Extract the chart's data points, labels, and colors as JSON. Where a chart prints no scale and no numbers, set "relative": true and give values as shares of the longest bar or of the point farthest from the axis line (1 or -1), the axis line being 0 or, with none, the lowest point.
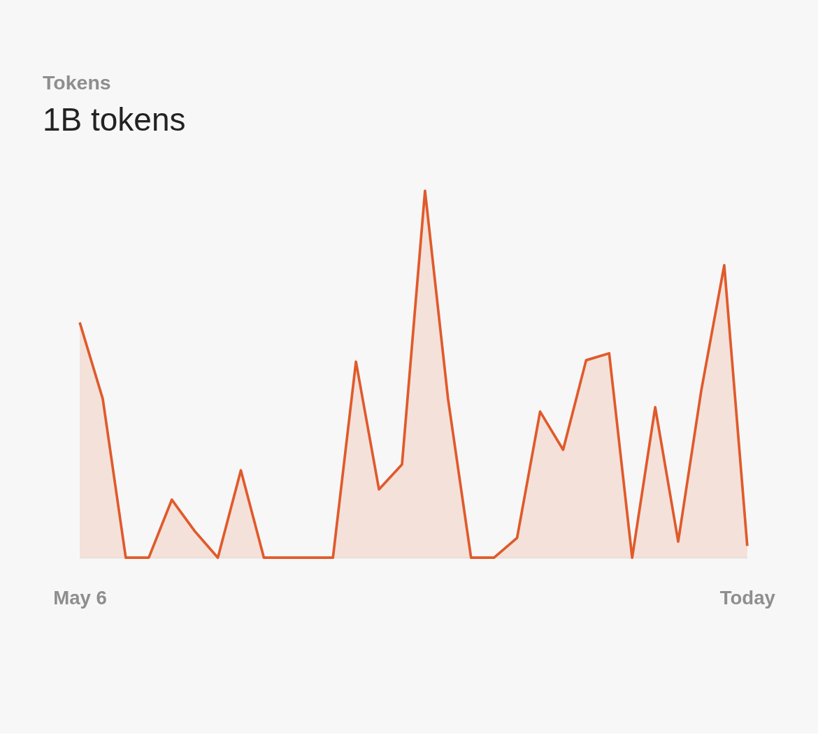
{
  "chart_data": {
    "type": "area",
    "title": "Tokens",
    "subtitle": "1B tokens",
    "relative": true,
    "grid": false,
    "categories": [
      "May 6",
      null,
      null,
      null,
      null,
      null,
      null,
      null,
      null,
      null,
      null,
      null,
      null,
      null,
      null,
      null,
      null,
      null,
      null,
      null,
      null,
      null,
      null,
      null,
      null,
      null,
      null,
      null,
      null,
      "Today"
    ],
    "series": [
      {
        "color": "#e05a2b",
        "values": [
          0.641,
          0.433,
          0,
          0,
          0.158,
          0.072,
          0,
          0.238,
          0,
          0,
          0,
          0,
          0.534,
          0.186,
          0.254,
          1,
          0.433,
          0,
          0,
          0.054,
          0.398,
          0.294,
          0.538,
          0.557,
          0,
          0.41,
          0.044,
          0.455,
          0.797,
          0.032
        ]
      }
    ]
  }
}
